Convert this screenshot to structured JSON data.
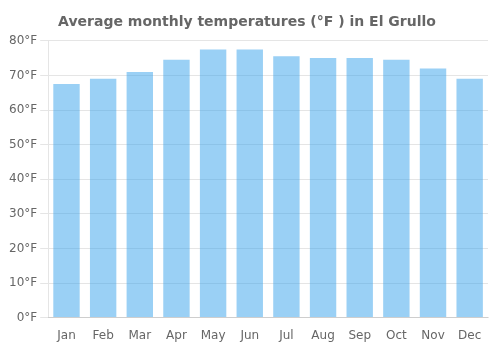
{
  "chart_data": {
    "type": "bar",
    "title": "Average monthly temperatures (°F ) in El Grullo",
    "categories": [
      "Jan",
      "Feb",
      "Mar",
      "Apr",
      "May",
      "Jun",
      "Jul",
      "Aug",
      "Sep",
      "Oct",
      "Nov",
      "Dec"
    ],
    "values": [
      67.5,
      69.0,
      71.0,
      74.5,
      77.5,
      77.5,
      75.5,
      75.0,
      75.0,
      74.5,
      72.0,
      69.0
    ],
    "ylim": [
      0,
      80
    ],
    "yticks": [
      {
        "value": 0,
        "label": "0°F"
      },
      {
        "value": 10,
        "label": "10°F"
      },
      {
        "value": 20,
        "label": "20°F"
      },
      {
        "value": 30,
        "label": "30°F"
      },
      {
        "value": 40,
        "label": "40°F"
      },
      {
        "value": 50,
        "label": "50°F"
      },
      {
        "value": 60,
        "label": "60°F"
      },
      {
        "value": 70,
        "label": "70°F"
      },
      {
        "value": 80,
        "label": "80°F"
      }
    ],
    "grid": true
  }
}
